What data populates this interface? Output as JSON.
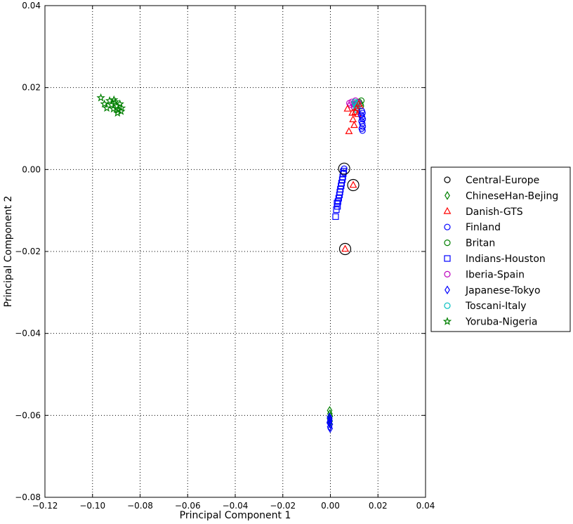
{
  "chart_data": {
    "type": "scatter",
    "title": "",
    "xlabel": "Principal Component 1",
    "ylabel": "Principal Component 2",
    "xlim": [
      -0.12,
      0.04
    ],
    "ylim": [
      -0.08,
      0.04
    ],
    "xticks": [
      -0.12,
      -0.1,
      -0.08,
      -0.06,
      -0.04,
      -0.02,
      0.0,
      0.02,
      0.04
    ],
    "yticks": [
      -0.08,
      -0.06,
      -0.04,
      -0.02,
      0.0,
      0.02,
      0.04
    ],
    "xtick_labels": [
      "−0.12",
      "−0.10",
      "−0.08",
      "−0.06",
      "−0.04",
      "−0.02",
      "0.00",
      "0.02",
      "0.04"
    ],
    "ytick_labels": [
      "−0.08",
      "−0.06",
      "−0.04",
      "−0.02",
      "0.00",
      "0.02",
      "0.04"
    ],
    "grid": true,
    "grid_style": "dotted",
    "legend_position": "right-outside",
    "series": [
      {
        "name": "Central-Europe",
        "marker": "circle",
        "color": "#000000",
        "points": [
          [
            0.0058,
            0.0002
          ],
          [
            0.0096,
            -0.0038
          ],
          [
            0.0062,
            -0.0194
          ]
        ],
        "large": true
      },
      {
        "name": "ChineseHan-Bejing",
        "marker": "diamond",
        "color": "#007f00",
        "points": [
          [
            -0.0003,
            -0.0588
          ],
          [
            -0.0002,
            -0.0596
          ],
          [
            0.0,
            -0.0602
          ],
          [
            -0.0004,
            -0.0608
          ],
          [
            -0.0001,
            -0.0614
          ],
          [
            -0.0003,
            -0.062
          ]
        ]
      },
      {
        "name": "Danish-GTS",
        "marker": "triangle",
        "color": "#ff0000",
        "points": [
          [
            0.0078,
            0.0093
          ],
          [
            0.0072,
            0.0148
          ],
          [
            0.0092,
            0.0138
          ],
          [
            0.0095,
            0.0122
          ],
          [
            0.01,
            0.0108
          ],
          [
            0.011,
            0.015
          ],
          [
            0.012,
            0.016
          ],
          [
            0.0105,
            0.014
          ],
          [
            0.0125,
            0.0155
          ],
          [
            0.0115,
            0.0135
          ],
          [
            0.0096,
            -0.0038
          ],
          [
            0.0062,
            -0.0194
          ]
        ]
      },
      {
        "name": "Finland",
        "marker": "circle",
        "color": "#0000ff",
        "points": [
          [
            0.0135,
            0.0095
          ],
          [
            0.0132,
            0.01
          ],
          [
            0.0136,
            0.0105
          ],
          [
            0.0134,
            0.0112
          ],
          [
            0.0131,
            0.0118
          ],
          [
            0.0136,
            0.0123
          ],
          [
            0.0133,
            0.0128
          ],
          [
            0.013,
            0.0133
          ],
          [
            0.0135,
            0.0138
          ],
          [
            0.0132,
            0.0143
          ],
          [
            0.0058,
            0.0002
          ],
          [
            0.0057,
            -0.0008
          ]
        ]
      },
      {
        "name": "Britan",
        "marker": "circle",
        "color": "#007f00",
        "points": [
          [
            0.012,
            0.0165
          ],
          [
            0.0125,
            0.016
          ],
          [
            0.013,
            0.0168
          ],
          [
            0.0118,
            0.0158
          ],
          [
            0.0128,
            0.0155
          ],
          [
            0.011,
            0.0162
          ]
        ]
      },
      {
        "name": "Indians-Houston",
        "marker": "square",
        "color": "#0000ff",
        "points": [
          [
            0.0022,
            -0.0115
          ],
          [
            0.0025,
            -0.0098
          ],
          [
            0.003,
            -0.009
          ],
          [
            0.0028,
            -0.0082
          ],
          [
            0.0032,
            -0.0078
          ],
          [
            0.0035,
            -0.007
          ],
          [
            0.0038,
            -0.0062
          ],
          [
            0.004,
            -0.0055
          ],
          [
            0.0042,
            -0.0048
          ],
          [
            0.0045,
            -0.004
          ],
          [
            0.0047,
            -0.0033
          ],
          [
            0.005,
            -0.0025
          ],
          [
            0.0052,
            -0.0018
          ],
          [
            0.0054,
            -0.001
          ],
          [
            0.0056,
            -0.0004
          ]
        ]
      },
      {
        "name": "Iberia-Spain",
        "marker": "circle",
        "color": "#bf00bf",
        "points": [
          [
            0.008,
            0.0162
          ],
          [
            0.009,
            0.0165
          ],
          [
            0.0098,
            0.016
          ],
          [
            0.0105,
            0.0168
          ],
          [
            0.0112,
            0.0155
          ],
          [
            0.0118,
            0.0163
          ],
          [
            0.0085,
            0.0158
          ],
          [
            0.01,
            0.0152
          ]
        ]
      },
      {
        "name": "Japanese-Tokyo",
        "marker": "diamond",
        "color": "#0000ff",
        "points": [
          [
            -0.0004,
            -0.0604
          ],
          [
            -0.0002,
            -0.0612
          ],
          [
            -0.0005,
            -0.0618
          ],
          [
            0.0,
            -0.0622
          ],
          [
            -0.0003,
            -0.0628
          ],
          [
            -0.0001,
            -0.0632
          ],
          [
            -0.0004,
            -0.0616
          ],
          [
            -0.0002,
            -0.0608
          ]
        ]
      },
      {
        "name": "Toscani-Italy",
        "marker": "circle",
        "color": "#00bfbf",
        "points": [
          [
            0.0105,
            0.016
          ],
          [
            0.011,
            0.0155
          ],
          [
            0.0115,
            0.0162
          ],
          [
            0.0108,
            0.015
          ],
          [
            0.0112,
            0.0145
          ],
          [
            0.0118,
            0.0158
          ],
          [
            0.0102,
            0.0165
          ]
        ]
      },
      {
        "name": "Yoruba-Nigeria",
        "marker": "star",
        "color": "#007f00",
        "points": [
          [
            -0.0965,
            0.0175
          ],
          [
            -0.095,
            0.016
          ],
          [
            -0.094,
            0.015
          ],
          [
            -0.0928,
            0.0168
          ],
          [
            -0.092,
            0.0158
          ],
          [
            -0.0912,
            0.0148
          ],
          [
            -0.0905,
            0.0165
          ],
          [
            -0.0898,
            0.0155
          ],
          [
            -0.0892,
            0.0145
          ],
          [
            -0.0885,
            0.016
          ],
          [
            -0.0878,
            0.015
          ],
          [
            -0.091,
            0.017
          ],
          [
            -0.0895,
            0.0138
          ],
          [
            -0.088,
            0.0142
          ]
        ]
      }
    ]
  }
}
